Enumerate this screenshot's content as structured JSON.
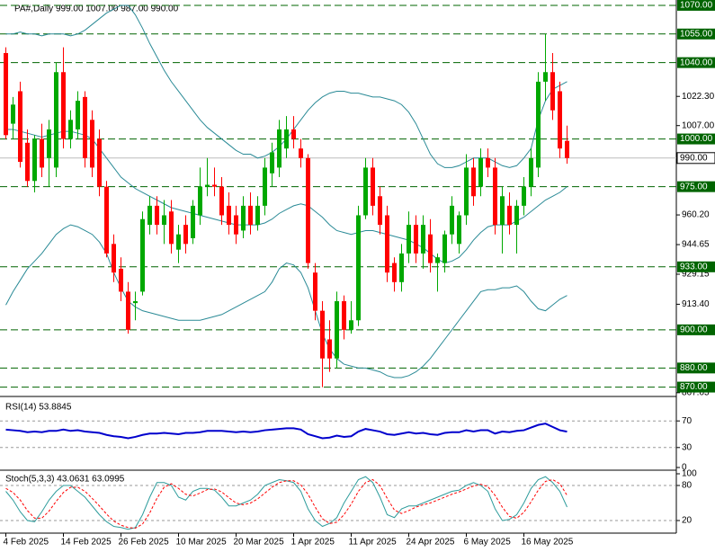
{
  "chart_data": [
    {
      "type": "candlestick",
      "title": "PA#,Daily  999.00 1007.00 987.00 990.00",
      "categories": [
        "4 Feb 2025",
        null,
        null,
        null,
        null,
        null,
        null,
        null,
        "14 Feb 2025",
        null,
        null,
        null,
        null,
        null,
        null,
        null,
        "26 Feb 2025",
        null,
        null,
        null,
        null,
        null,
        null,
        null,
        "10 Mar 2025",
        null,
        null,
        null,
        null,
        null,
        null,
        null,
        "20 Mar 2025",
        null,
        null,
        null,
        null,
        null,
        null,
        null,
        "1 Apr 2025",
        null,
        null,
        null,
        null,
        null,
        null,
        null,
        "11 Apr 2025",
        null,
        null,
        null,
        null,
        null,
        null,
        null,
        "24 Apr 2025",
        null,
        null,
        null,
        null,
        null,
        null,
        null,
        "6 May 2025",
        null,
        null,
        null,
        null,
        null,
        null,
        null,
        "16 May 2025",
        null,
        null,
        null,
        null,
        null,
        null
      ],
      "open": [
        1045,
        1008,
        1025,
        998,
        978,
        1000,
        990,
        985,
        1035,
        1000,
        1005,
        1022,
        1010,
        1000,
        975,
        945,
        932,
        920,
        914,
        920,
        955,
        965,
        955,
        962,
        942,
        955,
        948,
        960,
        975,
        976,
        975,
        965,
        960,
        952,
        965,
        955,
        965,
        982,
        985,
        995,
        1005,
        995,
        990,
        930,
        910,
        895,
        885,
        915,
        900,
        905,
        960,
        985,
        970,
        960,
        935,
        925,
        940,
        955,
        940,
        950,
        935,
        935,
        950,
        945,
        960,
        985,
        975,
        990,
        985,
        955,
        965,
        955,
        965,
        975,
        985,
        1030,
        1035,
        1025,
        999
      ],
      "high": [
        1048,
        1022,
        1030,
        1005,
        1002,
        1008,
        1010,
        1040,
        1048,
        1015,
        1025,
        1025,
        1015,
        1005,
        978,
        950,
        938,
        925,
        920,
        962,
        970,
        970,
        968,
        968,
        955,
        960,
        968,
        985,
        990,
        985,
        980,
        972,
        965,
        970,
        972,
        970,
        990,
        998,
        1010,
        1012,
        1012,
        1000,
        992,
        935,
        915,
        905,
        920,
        918,
        915,
        965,
        990,
        990,
        975,
        965,
        938,
        945,
        962,
        960,
        960,
        958,
        940,
        952,
        970,
        962,
        992,
        990,
        995,
        995,
        990,
        975,
        972,
        968,
        980,
        995,
        1035,
        1055,
        1045,
        1030,
        1007
      ],
      "low": [
        1000,
        1000,
        985,
        975,
        972,
        980,
        975,
        980,
        995,
        995,
        1000,
        985,
        980,
        970,
        938,
        925,
        915,
        898,
        905,
        918,
        950,
        950,
        945,
        940,
        935,
        940,
        945,
        955,
        970,
        970,
        955,
        950,
        945,
        948,
        950,
        952,
        960,
        975,
        980,
        990,
        995,
        985,
        932,
        905,
        870,
        878,
        880,
        895,
        898,
        902,
        958,
        960,
        950,
        925,
        920,
        920,
        935,
        935,
        932,
        930,
        920,
        930,
        945,
        940,
        955,
        965,
        970,
        980,
        950,
        940,
        950,
        940,
        960,
        970,
        980,
        1020,
        1010,
        990,
        987
      ],
      "close": [
        1002,
        1018,
        988,
        978,
        1000,
        985,
        1005,
        1035,
        1000,
        1010,
        1020,
        990,
        985,
        975,
        940,
        930,
        920,
        900,
        915,
        958,
        965,
        955,
        960,
        945,
        950,
        945,
        965,
        975,
        976,
        975,
        960,
        955,
        950,
        965,
        955,
        965,
        985,
        993,
        1005,
        1005,
        1000,
        990,
        935,
        910,
        885,
        885,
        915,
        900,
        905,
        960,
        985,
        965,
        955,
        930,
        925,
        940,
        955,
        940,
        955,
        935,
        938,
        950,
        965,
        960,
        985,
        970,
        990,
        985,
        955,
        970,
        955,
        965,
        975,
        990,
        1030,
        1035,
        1015,
        995,
        990
      ],
      "up_color": "#00a800",
      "down_color": "#ff0000",
      "overlays": [
        {
          "color": "#2a8a96",
          "values": [
            1055,
            1055,
            1056,
            1055,
            1055,
            1054,
            1055,
            1055,
            1055,
            1054,
            1055,
            1057,
            1060,
            1063,
            1066,
            1068,
            1070,
            1070,
            1065,
            1058,
            1050,
            1043,
            1036,
            1030,
            1025,
            1020,
            1015,
            1010,
            1006,
            1003,
            1000,
            997,
            994,
            992,
            992,
            990,
            991,
            993,
            996,
            1000,
            1005,
            1010,
            1015,
            1019,
            1022,
            1024,
            1025,
            1025,
            1024,
            1024,
            1023,
            1022,
            1022,
            1021,
            1020,
            1018,
            1014,
            1008,
            1000,
            992,
            987,
            985,
            985,
            986,
            988,
            990,
            990,
            990,
            988,
            986,
            985,
            986,
            990,
            995,
            1010,
            1020,
            1026,
            1028,
            1030
          ]
        },
        {
          "color": "#2a8a96",
          "values": [
            1005,
            1005,
            1004,
            1003,
            1002,
            1001,
            1002,
            1003,
            1004,
            1004,
            1003,
            1002,
            1000,
            995,
            990,
            985,
            980,
            977,
            974,
            972,
            970,
            968,
            966,
            964,
            963,
            962,
            961,
            960,
            959,
            958,
            957,
            956,
            955,
            955,
            955,
            955,
            956,
            958,
            961,
            963,
            965,
            966,
            965,
            962,
            959,
            955,
            952,
            951,
            950,
            951,
            952,
            952,
            951,
            950,
            949,
            948,
            947,
            945,
            943,
            940,
            937,
            935,
            936,
            938,
            942,
            947,
            951,
            954,
            955,
            955,
            955,
            957,
            959,
            962,
            965,
            968,
            970,
            972,
            975
          ]
        },
        {
          "color": "#2a8a96",
          "values": [
            913,
            920,
            926,
            932,
            936,
            940,
            945,
            950,
            953,
            955,
            954,
            952,
            950,
            946,
            940,
            930,
            922,
            915,
            912,
            910,
            909,
            908,
            907,
            906,
            905,
            905,
            905,
            905,
            906,
            907,
            908,
            910,
            912,
            914,
            916,
            918,
            920,
            925,
            932,
            935,
            934,
            930,
            922,
            910,
            898,
            890,
            885,
            882,
            881,
            880,
            880,
            879,
            878,
            876,
            875,
            875,
            876,
            878,
            881,
            885,
            890,
            895,
            900,
            905,
            910,
            915,
            920,
            921,
            921,
            922,
            922,
            923,
            920,
            915,
            911,
            910,
            913,
            916,
            918
          ]
        }
      ],
      "ylim": [
        866.5,
        1072.8
      ],
      "yticks": [
        {
          "value": 1022.3,
          "label": "1022.30"
        },
        {
          "value": 1007,
          "label": "1007.00"
        },
        {
          "value": 960.2,
          "label": "960.20"
        },
        {
          "value": 944.65,
          "label": "944.65"
        },
        {
          "value": 929.15,
          "label": "929.15"
        },
        {
          "value": 913.4,
          "label": "913.40"
        },
        {
          "value": 867.05,
          "label": "867.05"
        }
      ],
      "levels": [
        {
          "value": 1070,
          "label": "1070.00"
        },
        {
          "value": 1055,
          "label": "1055.00"
        },
        {
          "value": 1040,
          "label": "1040.00"
        },
        {
          "value": 1000,
          "label": "1000.00"
        },
        {
          "value": 975,
          "label": "975.00"
        },
        {
          "value": 933,
          "label": "933.00"
        },
        {
          "value": 900,
          "label": "900.00"
        },
        {
          "value": 880,
          "label": "880.00"
        },
        {
          "value": 870,
          "label": "870.00"
        }
      ],
      "level_color": "#006400",
      "last": {
        "value": 990,
        "label": "990.00"
      }
    },
    {
      "type": "line",
      "title": "RSI(14) 53.8845",
      "series": [
        {
          "color": "#0000cd",
          "values": [
            57,
            56,
            55,
            53,
            54,
            53,
            55,
            55,
            57,
            55,
            56,
            54,
            53,
            52,
            49,
            47,
            46,
            44,
            46,
            49,
            51,
            51,
            52,
            51,
            50,
            52,
            52,
            53,
            55,
            55,
            55,
            54,
            53,
            54,
            53,
            54,
            56,
            57,
            58,
            59,
            59,
            57,
            50,
            47,
            44,
            45,
            48,
            46,
            47,
            54,
            58,
            56,
            54,
            50,
            49,
            51,
            53,
            51,
            52,
            50,
            49,
            52,
            53,
            53,
            56,
            54,
            56,
            56,
            51,
            54,
            53,
            55,
            56,
            60,
            64,
            66,
            61,
            56,
            53.8845
          ]
        }
      ],
      "ylim": [
        0,
        100
      ],
      "yticks": [
        70,
        30,
        0
      ],
      "levels": [
        70,
        30
      ]
    },
    {
      "type": "line",
      "title": "Stoch(5,3,3) 43.0631 63.0995",
      "series": [
        {
          "color": "#2e9c9c",
          "values": [
            70,
            55,
            35,
            20,
            18,
            35,
            55,
            70,
            80,
            80,
            70,
            60,
            45,
            30,
            18,
            10,
            8,
            5,
            8,
            30,
            60,
            85,
            85,
            80,
            60,
            55,
            70,
            75,
            75,
            72,
            60,
            45,
            45,
            50,
            55,
            65,
            80,
            85,
            90,
            88,
            85,
            70,
            40,
            20,
            10,
            15,
            25,
            50,
            70,
            90,
            95,
            85,
            60,
            30,
            25,
            40,
            45,
            45,
            50,
            55,
            60,
            65,
            70,
            72,
            80,
            85,
            80,
            70,
            40,
            20,
            22,
            30,
            50,
            75,
            90,
            95,
            85,
            70,
            43.0631
          ]
        },
        {
          "color": "#ff0000",
          "dashed": true,
          "values": [
            75,
            68,
            55,
            37,
            24,
            24,
            36,
            53,
            68,
            77,
            77,
            70,
            58,
            45,
            31,
            19,
            12,
            8,
            7,
            14,
            33,
            58,
            77,
            83,
            75,
            65,
            62,
            67,
            73,
            74,
            69,
            59,
            50,
            47,
            50,
            57,
            67,
            77,
            85,
            88,
            88,
            81,
            65,
            43,
            23,
            15,
            17,
            30,
            48,
            70,
            85,
            90,
            80,
            58,
            38,
            32,
            37,
            43,
            47,
            50,
            55,
            60,
            65,
            69,
            74,
            79,
            82,
            78,
            63,
            43,
            27,
            24,
            34,
            52,
            72,
            87,
            90,
            83,
            63.0995
          ]
        }
      ],
      "ylim": [
        0,
        100
      ],
      "yticks": [
        100,
        80,
        20
      ],
      "levels": [
        80,
        20
      ]
    }
  ]
}
